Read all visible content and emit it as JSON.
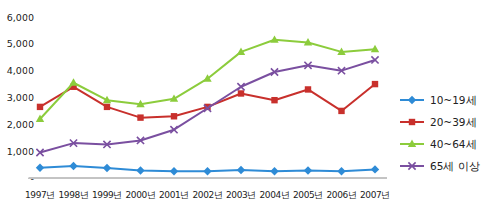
{
  "chart_data": {
    "type": "line",
    "categories": [
      "1997년",
      "1998년",
      "1999년",
      "2000년",
      "2001년",
      "2002년",
      "2003년",
      "2004년",
      "2005년",
      "2006년",
      "2007년"
    ],
    "series": [
      {
        "name": "10~19세",
        "color": "#2e8bd6",
        "marker": "diamond",
        "values": [
          380,
          450,
          370,
          280,
          250,
          250,
          300,
          250,
          280,
          250,
          320
        ]
      },
      {
        "name": "20~39세",
        "color": "#c8302c",
        "marker": "square",
        "values": [
          2650,
          3400,
          2650,
          2250,
          2300,
          2650,
          3150,
          2900,
          3300,
          2500,
          3500
        ]
      },
      {
        "name": "40~64세",
        "color": "#8ccc3c",
        "marker": "triangle",
        "values": [
          2200,
          3550,
          2900,
          2750,
          2950,
          3700,
          4700,
          5150,
          5050,
          4700,
          4800
        ]
      },
      {
        "name": "65세 이상",
        "color": "#7a4fa0",
        "marker": "x",
        "values": [
          950,
          1300,
          1250,
          1400,
          1800,
          2600,
          3400,
          3950,
          4200,
          4000,
          4400
        ]
      }
    ],
    "ylim": [
      0,
      6000
    ],
    "yticks": [
      {
        "value": 0,
        "label": "-"
      },
      {
        "value": 1000,
        "label": "1,000"
      },
      {
        "value": 2000,
        "label": "2,000"
      },
      {
        "value": 3000,
        "label": "3,000"
      },
      {
        "value": 4000,
        "label": "4,000"
      },
      {
        "value": 5000,
        "label": "5,000"
      },
      {
        "value": 6000,
        "label": "6,000"
      }
    ],
    "grid": false,
    "legend": "right"
  }
}
